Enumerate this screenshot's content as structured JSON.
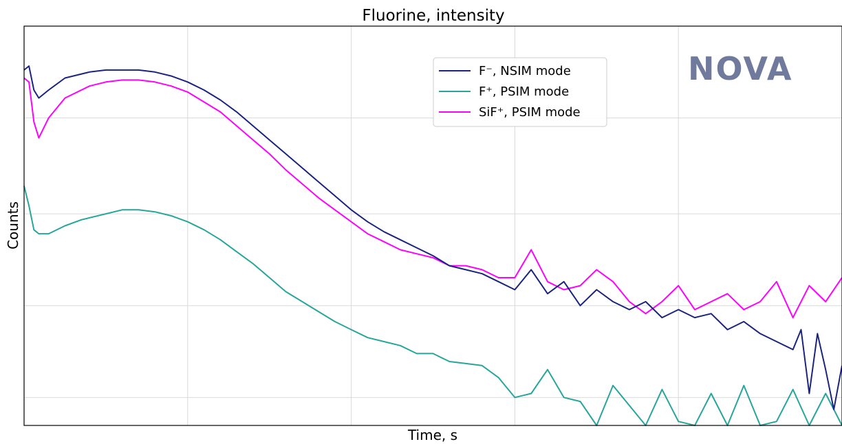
{
  "chart_data": {
    "type": "line",
    "title": "Fluorine, intensity",
    "xlabel": "Time, s",
    "ylabel": "Counts",
    "xlim": [
      0,
      100
    ],
    "ylim": [
      0,
      100
    ],
    "grid": true,
    "legend_position": "top-center-right",
    "x_ticks": [
      20,
      40,
      60,
      80
    ],
    "y_ticks": [
      7,
      30,
      53,
      77
    ],
    "logo": "NOVA",
    "series": [
      {
        "name": "F⁻, NSIM mode",
        "color": "#1a237e",
        "x": [
          0,
          0.6,
          1.2,
          1.8,
          3,
          5,
          8,
          10,
          12,
          14,
          16,
          18,
          20,
          22,
          24,
          26,
          28,
          30,
          32,
          34,
          36,
          38,
          40,
          42,
          44,
          46,
          48,
          50,
          52,
          54,
          56,
          58,
          60,
          62,
          64,
          66,
          68,
          70,
          72,
          74,
          76,
          78,
          80,
          82,
          84,
          86,
          88,
          90,
          92,
          94,
          95,
          96,
          97,
          98,
          99,
          100
        ],
        "y": [
          89,
          90,
          84,
          82,
          84,
          87,
          88.5,
          89,
          89,
          89,
          88.5,
          87.5,
          86,
          84,
          81.5,
          78.5,
          75,
          71.5,
          68,
          64.5,
          61,
          57.5,
          54,
          51,
          48.5,
          46.5,
          44.5,
          42.5,
          40,
          39,
          38,
          36,
          34,
          39,
          33,
          36,
          30,
          34,
          31,
          29,
          31,
          27,
          29,
          27,
          28,
          24,
          26,
          23,
          21,
          19,
          24,
          8,
          23,
          14,
          4,
          15
        ]
      },
      {
        "name": "F⁺, PSIM mode",
        "color": "#26a69a",
        "x": [
          0,
          0.6,
          1.2,
          1.8,
          3,
          5,
          7,
          10,
          12,
          14,
          16,
          18,
          20,
          22,
          24,
          26,
          28,
          30,
          32,
          34,
          36,
          38,
          40,
          42,
          44,
          46,
          48,
          50,
          52,
          54,
          56,
          58,
          60,
          62,
          64,
          66,
          68,
          70,
          72,
          74,
          76,
          78,
          80,
          82,
          84,
          86,
          88,
          90,
          92,
          94,
          96,
          98,
          100
        ],
        "y": [
          60,
          55,
          49,
          48,
          48,
          50,
          51.5,
          53,
          54,
          54,
          53.5,
          52.5,
          51,
          49,
          46.5,
          43.5,
          40.5,
          37,
          33.5,
          31,
          28.5,
          26,
          24,
          22,
          21,
          20,
          18,
          18,
          16,
          15.5,
          15,
          12,
          7,
          8,
          14,
          7,
          6,
          0,
          10,
          5,
          0,
          9,
          1,
          0,
          8,
          0,
          10,
          0,
          1,
          9,
          0,
          8,
          0
        ]
      },
      {
        "name": "SiF⁺, PSIM mode",
        "color": "#ff00ff",
        "x": [
          0,
          0.6,
          1.2,
          1.8,
          3,
          5,
          8,
          10,
          12,
          14,
          16,
          18,
          20,
          22,
          24,
          26,
          28,
          30,
          32,
          34,
          36,
          38,
          40,
          42,
          44,
          46,
          48,
          50,
          52,
          54,
          56,
          58,
          60,
          62,
          64,
          66,
          68,
          70,
          72,
          74,
          76,
          78,
          80,
          82,
          84,
          86,
          88,
          90,
          92,
          94,
          96,
          98,
          100
        ],
        "y": [
          87,
          86,
          76,
          72,
          77,
          82,
          85,
          86,
          86.5,
          86.5,
          86,
          85,
          83.5,
          81,
          78.5,
          75,
          71.5,
          68,
          64,
          60.5,
          57,
          54,
          51,
          48,
          46,
          44,
          43,
          42,
          40,
          40,
          39,
          37,
          37,
          44,
          36,
          34,
          35,
          39,
          36,
          31,
          28,
          31,
          35,
          29,
          31,
          33,
          29,
          31,
          36,
          27,
          35,
          31,
          37
        ]
      }
    ]
  }
}
